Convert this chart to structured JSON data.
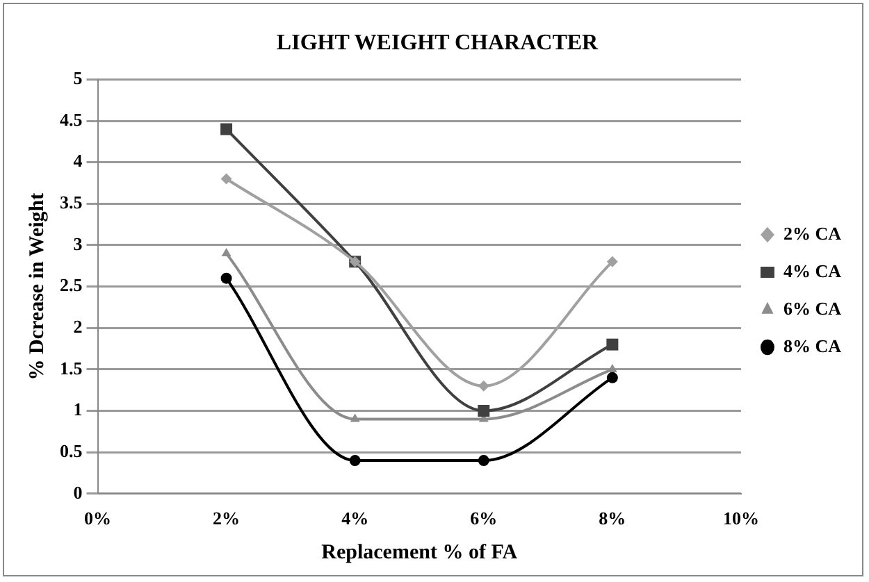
{
  "chart_data": {
    "type": "line",
    "title": "LIGHT WEIGHT CHARACTER",
    "xlabel": "Replacement % of FA",
    "ylabel": "% Dcrease in Weight",
    "x": [
      2,
      4,
      6,
      8
    ],
    "xlim": [
      0,
      10
    ],
    "xticks": [
      {
        "value": 0,
        "label": "0%"
      },
      {
        "value": 2,
        "label": "2%"
      },
      {
        "value": 4,
        "label": "4%"
      },
      {
        "value": 6,
        "label": "6%"
      },
      {
        "value": 8,
        "label": "8%"
      },
      {
        "value": 10,
        "label": "10%"
      }
    ],
    "ylim": [
      0,
      5
    ],
    "yticks": [
      0,
      0.5,
      1,
      1.5,
      2,
      2.5,
      3,
      3.5,
      4,
      4.5,
      5
    ],
    "grid": "y",
    "legend": "right",
    "series": [
      {
        "name": "2% CA",
        "color": "#a0a0a0",
        "marker": "diamond",
        "values": [
          3.8,
          2.8,
          1.3,
          2.8
        ]
      },
      {
        "name": "4% CA",
        "color": "#404040",
        "marker": "square",
        "values": [
          4.4,
          2.8,
          1.0,
          1.8
        ]
      },
      {
        "name": "6% CA",
        "color": "#8c8c8c",
        "marker": "triangle",
        "values": [
          2.9,
          0.9,
          0.9,
          1.5
        ]
      },
      {
        "name": "8% CA",
        "color": "#000000",
        "marker": "circle",
        "values": [
          2.6,
          0.4,
          0.4,
          1.4
        ]
      }
    ]
  }
}
